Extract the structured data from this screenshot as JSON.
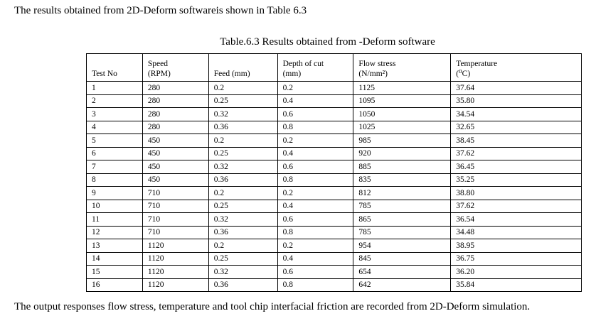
{
  "intro_text": "The results obtained from 2D-Deform softwareis shown in Table 6.3",
  "caption": "Table.6.3 Results obtained from -Deform software",
  "headers": [
    {
      "line1": "",
      "line2": "Test No"
    },
    {
      "line1": "Speed",
      "line2": "(RPM)"
    },
    {
      "line1": "",
      "line2": "Feed (mm)"
    },
    {
      "line1": "Depth of cut",
      "line2": "(mm)"
    },
    {
      "line1": "Flow stress",
      "line2": "(N/mm²)"
    },
    {
      "line1": "Temperature",
      "line2": "(⁰C)"
    }
  ],
  "rows": [
    [
      "1",
      "280",
      "0.2",
      "0.2",
      "1125",
      "37.64"
    ],
    [
      "2",
      "280",
      "0.25",
      "0.4",
      "1095",
      "35.80"
    ],
    [
      "3",
      "280",
      "0.32",
      "0.6",
      "1050",
      "34.54"
    ],
    [
      "4",
      "280",
      "0.36",
      "0.8",
      "1025",
      "32.65"
    ],
    [
      "5",
      "450",
      "0.2",
      "0.2",
      "985",
      "38.45"
    ],
    [
      "6",
      "450",
      "0.25",
      "0.4",
      "920",
      "37.62"
    ],
    [
      "7",
      "450",
      "0.32",
      "0.6",
      "885",
      "36.45"
    ],
    [
      "8",
      "450",
      "0.36",
      "0.8",
      "835",
      "35.25"
    ],
    [
      "9",
      "710",
      "0.2",
      "0.2",
      "812",
      "38.80"
    ],
    [
      "10",
      "710",
      "0.25",
      "0.4",
      "785",
      "37.62"
    ],
    [
      "11",
      "710",
      "0.32",
      "0.6",
      "865",
      "36.54"
    ],
    [
      "12",
      "710",
      "0.36",
      "0.8",
      "785",
      "34.48"
    ],
    [
      "13",
      "1120",
      "0.2",
      "0.2",
      "954",
      "38.95"
    ],
    [
      "14",
      "1120",
      "0.25",
      "0.4",
      "845",
      "36.75"
    ],
    [
      "15",
      "1120",
      "0.32",
      "0.6",
      "654",
      "36.20"
    ],
    [
      "16",
      "1120",
      "0.36",
      "0.8",
      "642",
      "35.84"
    ]
  ],
  "outro_text": "The output responses flow stress, temperature and tool chip interfacial friction are recorded from 2D-Deform simulation."
}
